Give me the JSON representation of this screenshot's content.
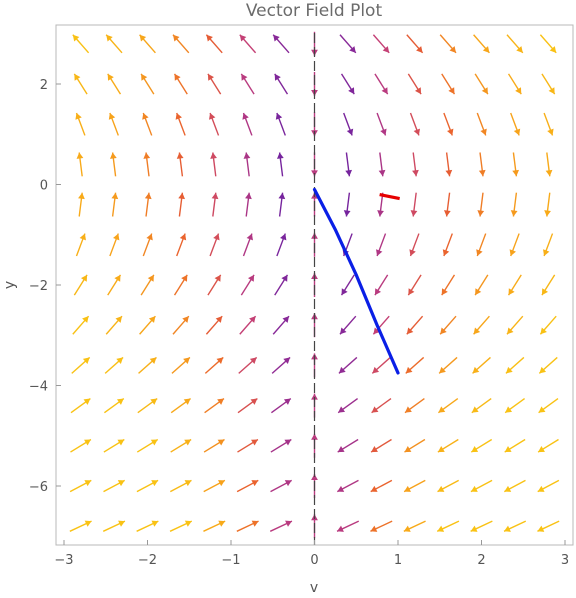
{
  "chart_data": {
    "type": "vector-field",
    "title": "Vector Field Plot",
    "xlabel": "v",
    "ylabel": "y",
    "xlim": [
      -3,
      3
    ],
    "ylim": [
      -7.2,
      3.2
    ],
    "x_ticks": [
      -3,
      -2,
      -1,
      0,
      1,
      2,
      3
    ],
    "x_tick_labels": [
      "−3",
      "−2",
      "−1",
      "0",
      "1",
      "2",
      "3"
    ],
    "y_ticks": [
      2,
      0,
      -2,
      -4,
      -6
    ],
    "y_tick_labels": [
      "2",
      "0",
      "−2",
      "−4",
      "−6"
    ],
    "field": {
      "grid_x": {
        "min": -2.8,
        "max": 2.8,
        "count": 15
      },
      "grid_y": {
        "min": -6.8,
        "max": 2.8,
        "count": 13
      },
      "color_scale": [
        "#2a0fa8",
        "#5b1da6",
        "#8d2a96",
        "#c23e7a",
        "#e9602f",
        "#f7a21b",
        "#f9c214"
      ]
    },
    "dashed_line": {
      "x": 0
    },
    "trajectory": {
      "color": "#0a1fe6",
      "points": [
        [
          0.0,
          -0.1
        ],
        [
          0.25,
          -0.9
        ],
        [
          0.5,
          -1.8
        ],
        [
          0.75,
          -2.8
        ],
        [
          1.0,
          -3.75
        ]
      ]
    },
    "marker": {
      "color": "#e60000",
      "points": [
        [
          0.78,
          -0.2
        ],
        [
          1.02,
          -0.28
        ]
      ]
    }
  }
}
